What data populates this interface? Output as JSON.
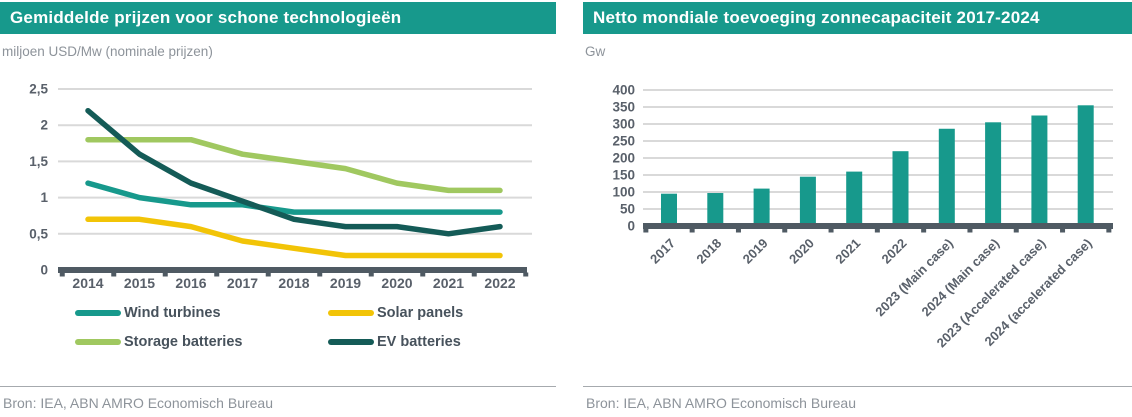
{
  "theme": {
    "accent_teal": "#17998C",
    "axis_bar_color": "#4F5A63",
    "gridline_color": "#D9D9D9",
    "tick_text_color": "#59606A",
    "muted_text_color": "#8D939A"
  },
  "left_chart": {
    "title": "Gemiddelde prijzen voor schone technologieën",
    "unit_label": "miljoen USD/Mw (nominale prijzen)",
    "source": "Bron: IEA, ABN AMRO Economisch Bureau",
    "chart_data": {
      "type": "line",
      "x": [
        "2014",
        "2015",
        "2016",
        "2017",
        "2018",
        "2019",
        "2020",
        "2021",
        "2022"
      ],
      "series": [
        {
          "name": "Wind turbines",
          "color": "#17998C",
          "values": [
            1.2,
            1.0,
            0.9,
            0.9,
            0.8,
            0.8,
            0.8,
            0.8,
            0.8
          ]
        },
        {
          "name": "Solar panels",
          "color": "#F2C407",
          "values": [
            0.7,
            0.7,
            0.6,
            0.4,
            0.3,
            0.2,
            0.2,
            0.2,
            0.2
          ]
        },
        {
          "name": "Storage batteries",
          "color": "#A0C860",
          "values": [
            1.8,
            1.8,
            1.8,
            1.6,
            1.5,
            1.4,
            1.2,
            1.1,
            1.1
          ]
        },
        {
          "name": "EV batteries",
          "color": "#145B57",
          "values": [
            2.2,
            1.6,
            1.2,
            0.95,
            0.7,
            0.6,
            0.6,
            0.5,
            0.6
          ]
        }
      ],
      "ylim": [
        0,
        2.5
      ],
      "yticks": [
        {
          "value": 2.5,
          "label": "2,5"
        },
        {
          "value": 2,
          "label": "2"
        },
        {
          "value": 1.5,
          "label": "1,5"
        },
        {
          "value": 1,
          "label": "1"
        },
        {
          "value": 0.5,
          "label": "0,5"
        },
        {
          "value": 0,
          "label": "0"
        }
      ],
      "grid": true,
      "legend_position": "bottom"
    },
    "legend": [
      {
        "label": "Wind turbines",
        "color": "#17998C"
      },
      {
        "label": "Solar panels",
        "color": "#F2C407"
      },
      {
        "label": "Storage batteries",
        "color": "#A0C860"
      },
      {
        "label": "EV batteries",
        "color": "#145B57"
      }
    ]
  },
  "right_chart": {
    "title": "Netto mondiale toevoeging zonnecapaciteit 2017-2024",
    "unit_label": "Gw",
    "source": "Bron: IEA, ABN AMRO Economisch Bureau",
    "chart_data": {
      "type": "bar",
      "categories": [
        "2017",
        "2018",
        "2019",
        "2020",
        "2021",
        "2022",
        "2023 (Main case)",
        "2024 (Main case)",
        "2023 (Accelerated case)",
        "2024 (accelerated case)"
      ],
      "values": [
        95,
        97,
        110,
        145,
        160,
        220,
        286,
        305,
        325,
        355
      ],
      "bar_color": "#17998C",
      "ylim": [
        0,
        400
      ],
      "yticks": [
        400,
        350,
        300,
        250,
        200,
        150,
        100,
        50,
        0
      ],
      "grid": true,
      "legend_position": "none"
    }
  }
}
